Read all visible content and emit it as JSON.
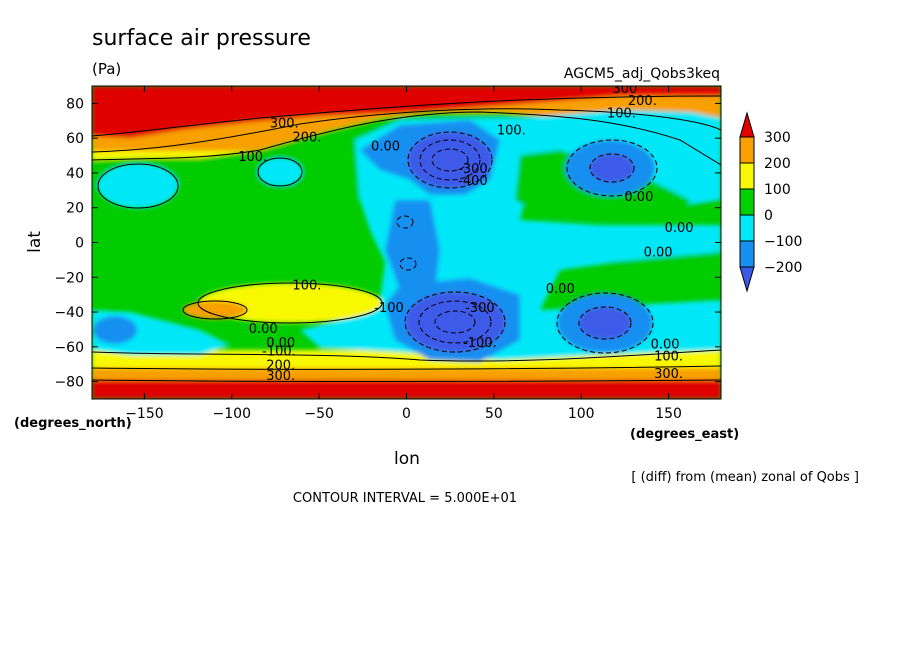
{
  "title": "surface air pressure",
  "units": "(Pa)",
  "run_id": "AGCM5_adj_Qobs3keq",
  "xlabel": "lon",
  "ylabel": "lat",
  "x_units": "(degrees_east)",
  "y_units": "(degrees_north)",
  "contour_interval": "CONTOUR INTERVAL = 5.000E+01",
  "note": "[ (diff) from (mean) zonal of Qobs ]",
  "chart_data": {
    "type": "heatmap",
    "title": "surface air pressure",
    "units": "Pa",
    "xlabel": "lon",
    "ylabel": "lat",
    "xlim": [
      -180,
      180
    ],
    "ylim": [
      -90,
      90
    ],
    "x_ticks": [
      -150,
      -100,
      -50,
      0,
      50,
      100,
      150
    ],
    "y_ticks": [
      -80,
      -60,
      -40,
      -20,
      0,
      20,
      40,
      60,
      80
    ],
    "contour_interval": 50,
    "colorbar": {
      "levels": [
        -200,
        -100,
        0,
        100,
        200,
        300
      ],
      "labels": [
        "300",
        "200",
        "100",
        "0",
        "-100",
        "-200"
      ],
      "colors": [
        "#e00000",
        "#f8a000",
        "#f8f800",
        "#00d000",
        "#00e8f8",
        "#1890f0",
        "#3c5ae8"
      ]
    },
    "features": [
      {
        "type": "band",
        "lat_min": 55,
        "lat_max": 90,
        "value": 300
      },
      {
        "type": "band",
        "lat_min": -90,
        "lat_max": -70,
        "value": 300
      },
      {
        "type": "low",
        "lon": 25,
        "lat": 42,
        "value": -300
      },
      {
        "type": "low",
        "lon": 25,
        "lat": -45,
        "value": -300
      },
      {
        "type": "low",
        "lon": 115,
        "lat": 43,
        "value": -200
      },
      {
        "type": "low",
        "lon": 112,
        "lat": -45,
        "value": -200
      },
      {
        "type": "high",
        "lon": -115,
        "lat": -37,
        "value": 200
      }
    ],
    "contour_labels": [
      {
        "text": "300.",
        "lon": -70,
        "lat": 66
      },
      {
        "text": "200.",
        "lon": -57,
        "lat": 58
      },
      {
        "text": "100.",
        "lon": -88,
        "lat": 47
      },
      {
        "text": "300",
        "lon": 125,
        "lat": 86
      },
      {
        "text": "200.",
        "lon": 135,
        "lat": 79
      },
      {
        "text": "100.",
        "lon": 123,
        "lat": 72
      },
      {
        "text": "100.",
        "lon": 60,
        "lat": 62
      },
      {
        "text": "0.00",
        "lon": -12,
        "lat": 53
      },
      {
        "text": "-300",
        "lon": 38,
        "lat": 40
      },
      {
        "text": "-400",
        "lon": 38,
        "lat": 33
      },
      {
        "text": "0.00",
        "lon": 133,
        "lat": 24
      },
      {
        "text": "0.00",
        "lon": 156,
        "lat": 6
      },
      {
        "text": "0.00",
        "lon": 144,
        "lat": -8
      },
      {
        "text": "100.",
        "lon": -57,
        "lat": -27
      },
      {
        "text": "0.00",
        "lon": 88,
        "lat": -29
      },
      {
        "text": "-100",
        "lon": -10,
        "lat": -40
      },
      {
        "text": "-300",
        "lon": 42,
        "lat": -40
      },
      {
        "text": "-100.",
        "lon": 42,
        "lat": -60
      },
      {
        "text": "0.00",
        "lon": -82,
        "lat": -52
      },
      {
        "text": "0.00",
        "lon": -72,
        "lat": -60
      },
      {
        "text": "0.00",
        "lon": 148,
        "lat": -61
      },
      {
        "text": "-100.",
        "lon": -73,
        "lat": -65
      },
      {
        "text": "100.",
        "lon": 150,
        "lat": -68
      },
      {
        "text": "200.",
        "lon": -72,
        "lat": -73
      },
      {
        "text": "300.",
        "lon": -72,
        "lat": -79
      },
      {
        "text": "300.",
        "lon": 150,
        "lat": -78
      }
    ]
  }
}
